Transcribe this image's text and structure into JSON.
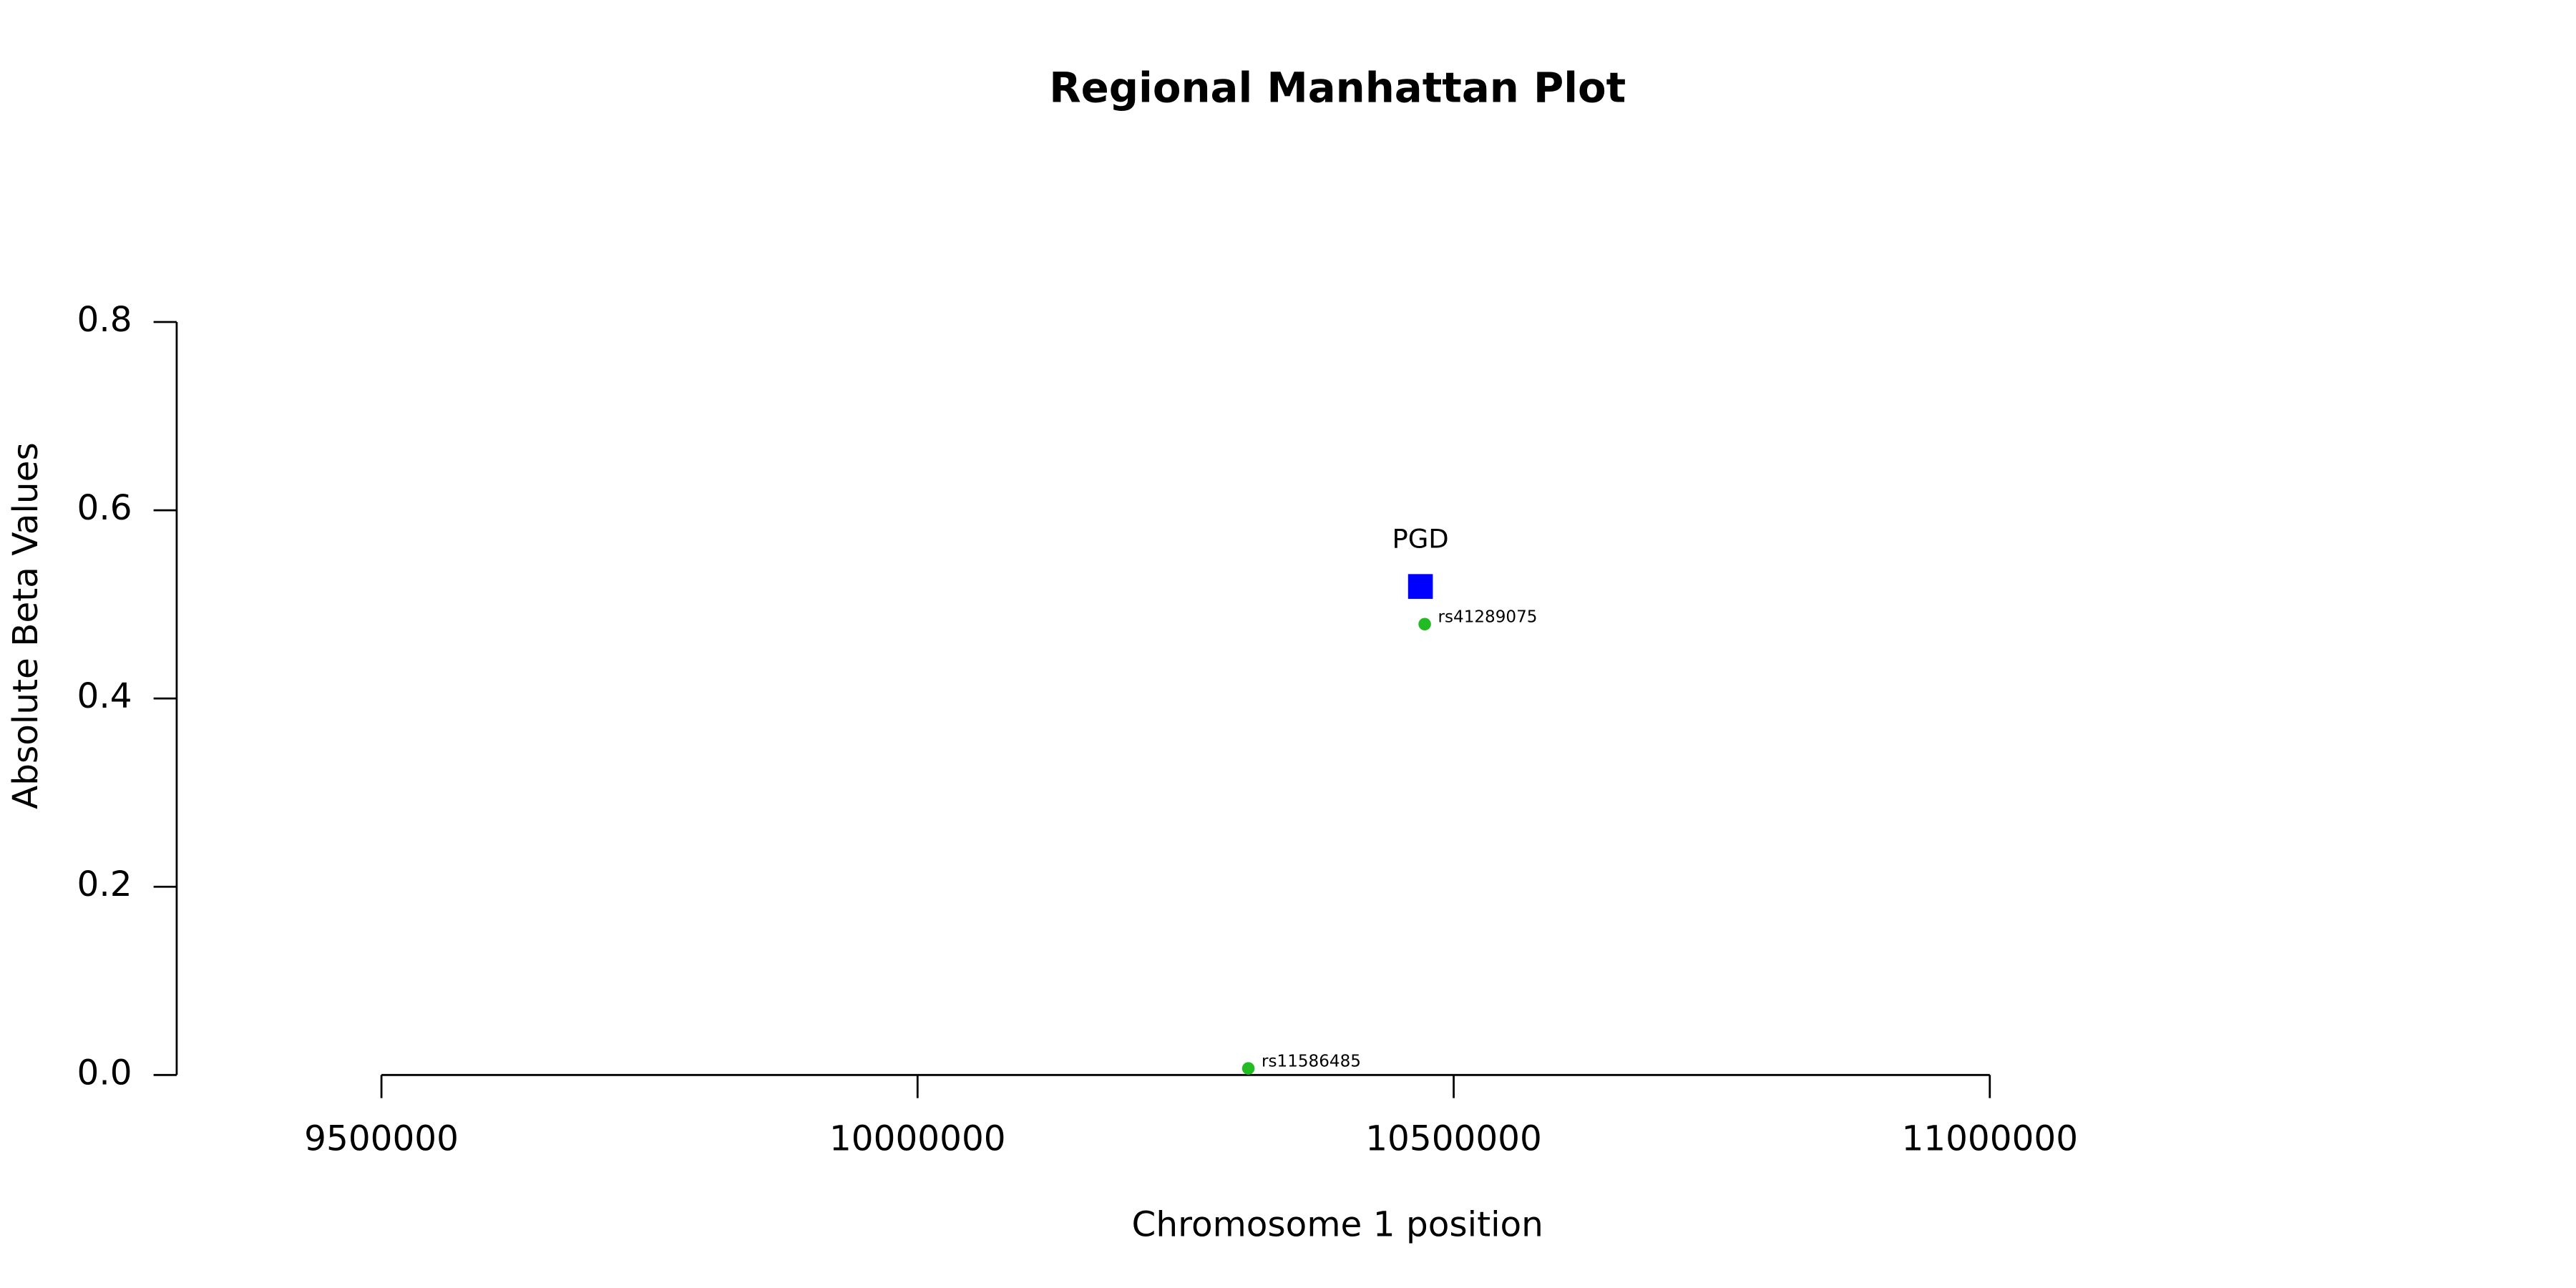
{
  "chart_data": {
    "type": "scatter",
    "title": "Regional Manhattan Plot",
    "x_label": "Chromosome 1 position",
    "y_label": "Absolute Beta Values",
    "xlim": [
      9500000,
      11000000
    ],
    "xticks": [
      9500000,
      10000000,
      10500000,
      11000000
    ],
    "ylim": [
      0,
      0.8
    ],
    "yticks": [
      {
        "value": 0,
        "label": "0.0"
      },
      0.2,
      0.4,
      0.6,
      0.8
    ],
    "series": [
      {
        "color": "#0000ff",
        "marker": "square",
        "x": [
          10469000
        ],
        "values": [
          0.519
        ],
        "labels": [
          "PGD"
        ]
      },
      {
        "color": "#22bb22",
        "marker": "circle",
        "x": [
          10473000,
          10308500
        ],
        "values": [
          0.479,
          0.007
        ],
        "labels": [
          "rs41289075",
          "rs11586485"
        ]
      }
    ]
  }
}
